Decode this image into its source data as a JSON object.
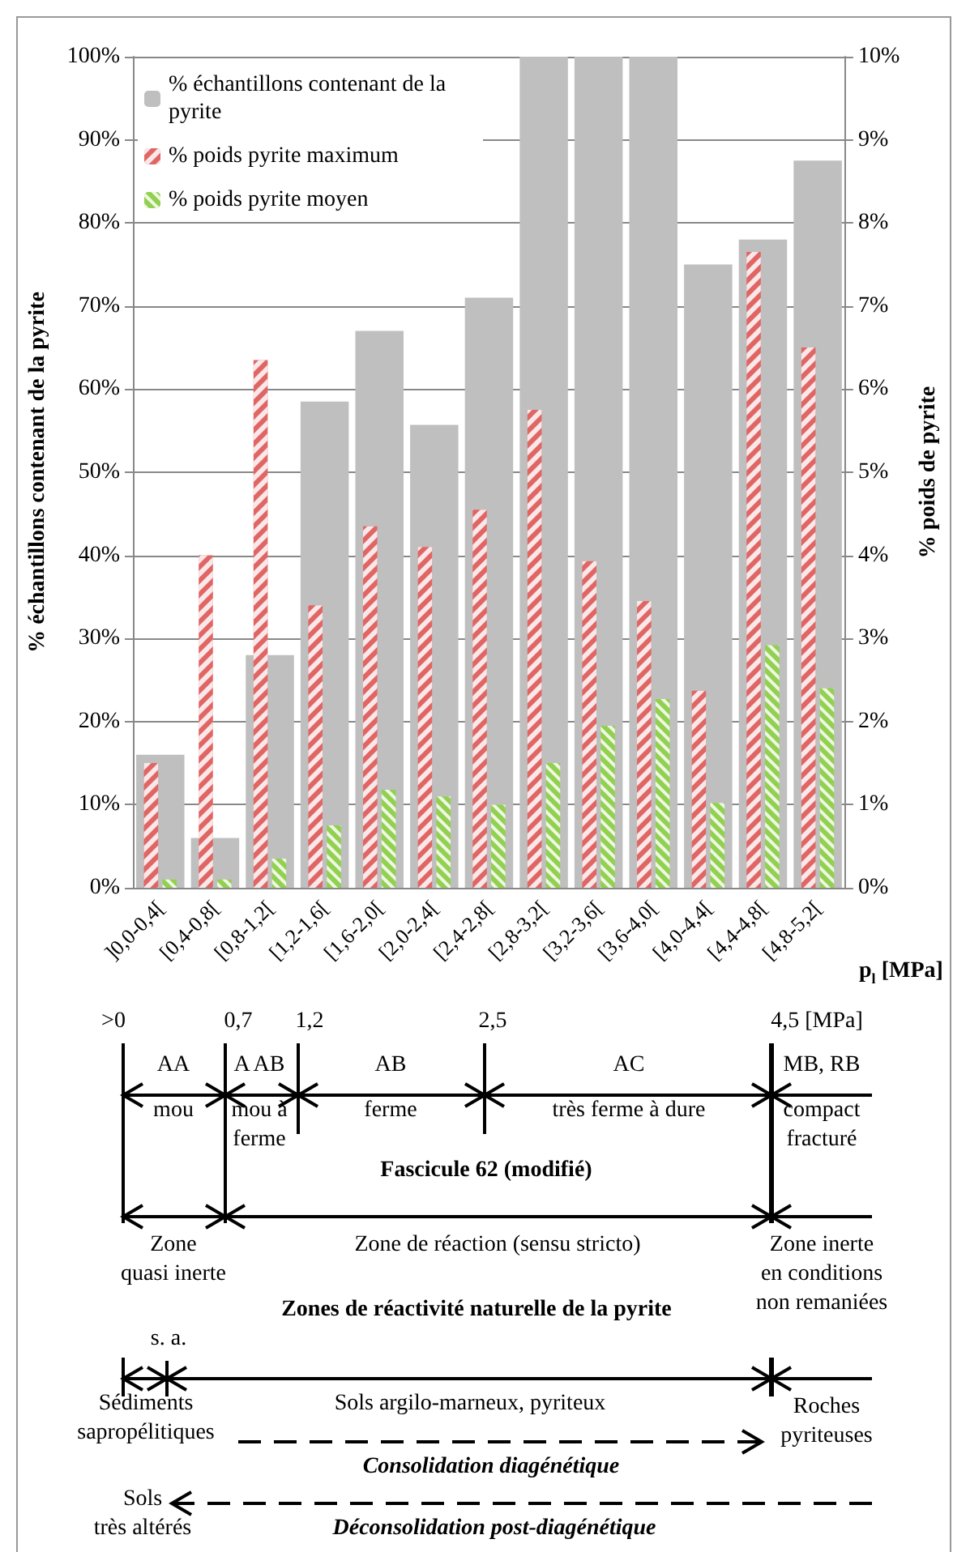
{
  "chart_data": {
    "type": "bar",
    "ylabel": "% échantillons contenant de la pyrite",
    "y2label": "% poids de pyrite",
    "xlabel": "p$_{l}$ [MPa]",
    "categories": [
      "]0,0-0,4[",
      "[0,4-0,8[",
      "[0,8-1,2[",
      "[1,2-1,6[",
      "[1,6-2,0[",
      "[2,0-2,4[",
      "[2,4-2,8[",
      "[2,8-3,2[",
      "[3,2-3,6[",
      "[3,6-4,0[",
      "[4,0-4,4[",
      "[4,4-4,8[",
      "[4,8-5,2["
    ],
    "series": [
      {
        "name": "% échantillons contenant de la pyrite",
        "color": "#bfbfbf",
        "values": [
          16,
          6,
          28,
          58.5,
          67,
          55.7,
          71,
          100,
          100,
          100,
          75,
          78,
          87.5
        ]
      },
      {
        "name": "% poids pyrite maximum",
        "color": "#e06666",
        "axis": "y2",
        "values": [
          1.5,
          4.0,
          6.35,
          3.4,
          4.35,
          4.1,
          4.55,
          5.75,
          3.93,
          3.45,
          2.37,
          7.65,
          6.5
        ]
      },
      {
        "name": "% poids pyrite moyen",
        "color": "#92d050",
        "axis": "y2",
        "values": [
          0.1,
          0.1,
          0.35,
          0.75,
          1.18,
          1.1,
          1.0,
          1.5,
          1.95,
          2.27,
          1.02,
          2.92,
          2.4
        ]
      }
    ],
    "ylim": [
      0,
      100
    ],
    "yticks": [
      {
        "value": 0,
        "label": "0%"
      },
      {
        "value": 10,
        "label": "10%"
      },
      {
        "value": 20,
        "label": "20%"
      },
      {
        "value": 30,
        "label": "30%"
      },
      {
        "value": 40,
        "label": "40%"
      },
      {
        "value": 50,
        "label": "50%"
      },
      {
        "value": 60,
        "label": "60%"
      },
      {
        "value": 70,
        "label": "70%"
      },
      {
        "value": 80,
        "label": "80%"
      },
      {
        "value": 90,
        "label": "90%"
      },
      {
        "value": 100,
        "label": "100%"
      }
    ],
    "y2lim": [
      0,
      10
    ],
    "y2ticks": [
      {
        "value": 0,
        "label": "0%"
      },
      {
        "value": 1,
        "label": "1%"
      },
      {
        "value": 2,
        "label": "2%"
      },
      {
        "value": 3,
        "label": "3%"
      },
      {
        "value": 4,
        "label": "4%"
      },
      {
        "value": 5,
        "label": "5%"
      },
      {
        "value": 6,
        "label": "6%"
      },
      {
        "value": 7,
        "label": "7%"
      },
      {
        "value": 8,
        "label": "8%"
      },
      {
        "value": 9,
        "label": "9%"
      },
      {
        "value": 10,
        "label": "10%"
      }
    ],
    "grid": "y",
    "legend": "top left",
    "annotations": [
      ">0",
      "0,7",
      "1,2",
      "2,5",
      "4,5 [MPa]",
      "AA",
      "A AB",
      "AB",
      "AC",
      "MB, RB",
      "mou",
      "mou à\nferme",
      "ferme",
      "très ferme à dure",
      "compact\nfracturé",
      "Fascicule 62 (modifié)",
      "Zone\nquasi inerte",
      "Zone de réaction (sensu stricto)",
      "Zone inerte\nen conditions\nnon remaniées",
      "Zones de réactivité naturelle de la pyrite",
      "s. a.",
      "Sédiments\nsapropélitiques",
      "Sols argilo-marneux, pyriteux",
      "Roches\npyriteuses",
      "Consolidation diagénétique",
      "Sols\ntrès altérés",
      "Déconsolidation post-diagénétique"
    ]
  }
}
